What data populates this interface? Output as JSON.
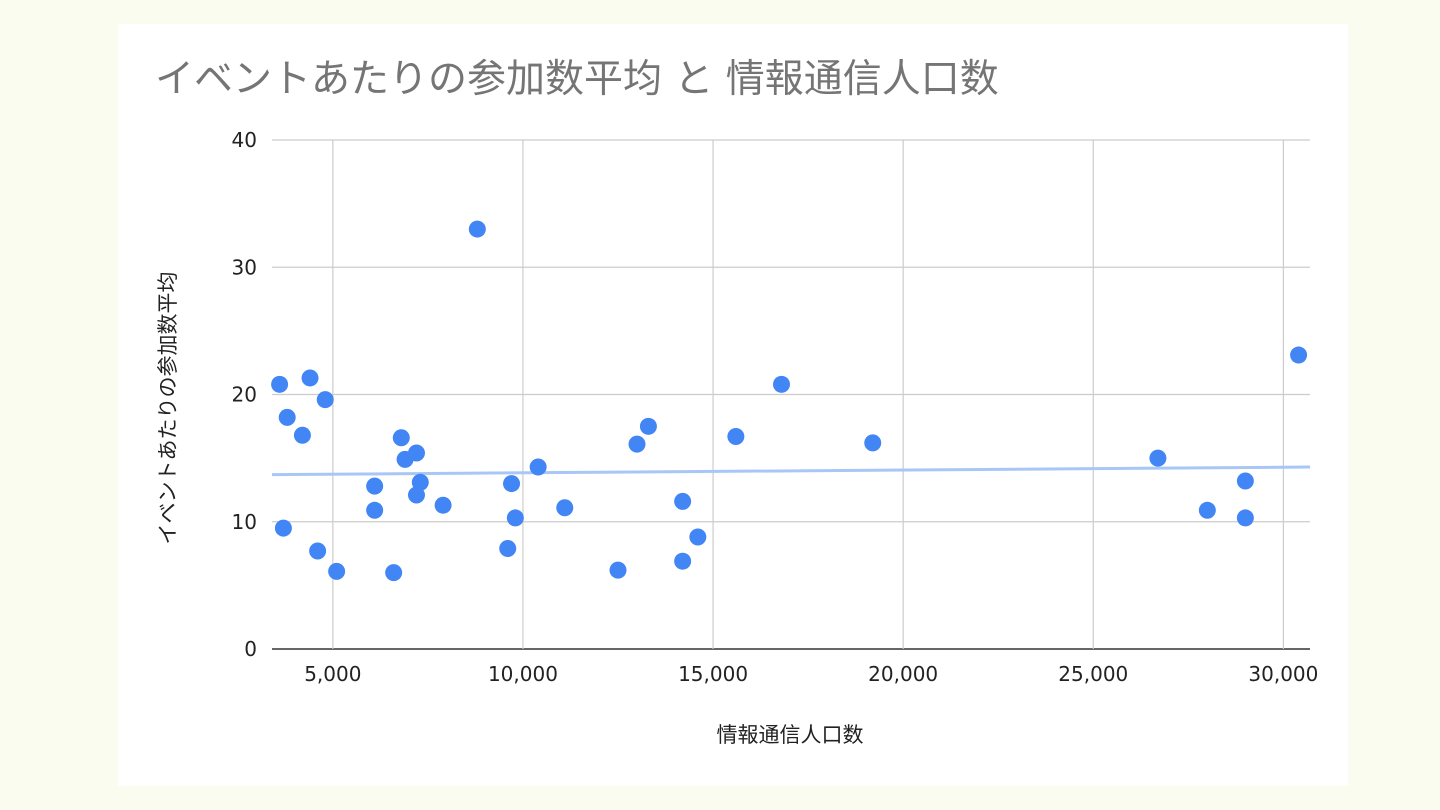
{
  "chart_data": {
    "type": "scatter",
    "title": "イベントあたりの参加数平均 と 情報通信人口数",
    "xlabel": "情報通信人口数",
    "ylabel": "イベントあたりの参加数平均",
    "xlim": [
      3400,
      30700
    ],
    "ylim": [
      0,
      40
    ],
    "x_ticks": [
      5000,
      10000,
      15000,
      20000,
      25000,
      30000
    ],
    "x_tick_labels": [
      "5,000",
      "10,000",
      "15,000",
      "20,000",
      "25,000",
      "30,000"
    ],
    "y_ticks": [
      0,
      10,
      20,
      30,
      40
    ],
    "y_tick_labels": [
      "0",
      "10",
      "20",
      "30",
      "40"
    ],
    "grid": true,
    "trendline": {
      "type": "linear",
      "points": [
        [
          3400,
          13.7
        ],
        [
          30700,
          14.3
        ]
      ],
      "color": "#a8c7f7"
    },
    "point_color": "#4285f4",
    "points": [
      [
        3600,
        20.8
      ],
      [
        3700,
        9.5
      ],
      [
        3800,
        18.2
      ],
      [
        4200,
        16.8
      ],
      [
        4400,
        21.3
      ],
      [
        4600,
        7.7
      ],
      [
        4800,
        19.6
      ],
      [
        5100,
        6.1
      ],
      [
        6100,
        10.9
      ],
      [
        6100,
        12.8
      ],
      [
        6600,
        6.0
      ],
      [
        6800,
        16.6
      ],
      [
        6900,
        14.9
      ],
      [
        7200,
        15.4
      ],
      [
        7300,
        13.1
      ],
      [
        7200,
        12.1
      ],
      [
        7900,
        11.3
      ],
      [
        8800,
        33.0
      ],
      [
        9600,
        7.9
      ],
      [
        9700,
        13.0
      ],
      [
        9800,
        10.3
      ],
      [
        10400,
        14.3
      ],
      [
        11100,
        11.1
      ],
      [
        12500,
        6.2
      ],
      [
        13000,
        16.1
      ],
      [
        13300,
        17.5
      ],
      [
        14200,
        11.6
      ],
      [
        14200,
        6.9
      ],
      [
        14600,
        8.8
      ],
      [
        15600,
        16.7
      ],
      [
        16800,
        20.8
      ],
      [
        19200,
        16.2
      ],
      [
        26700,
        15.0
      ],
      [
        28000,
        10.9
      ],
      [
        29000,
        13.2
      ],
      [
        29000,
        10.3
      ],
      [
        30400,
        23.1
      ]
    ]
  }
}
